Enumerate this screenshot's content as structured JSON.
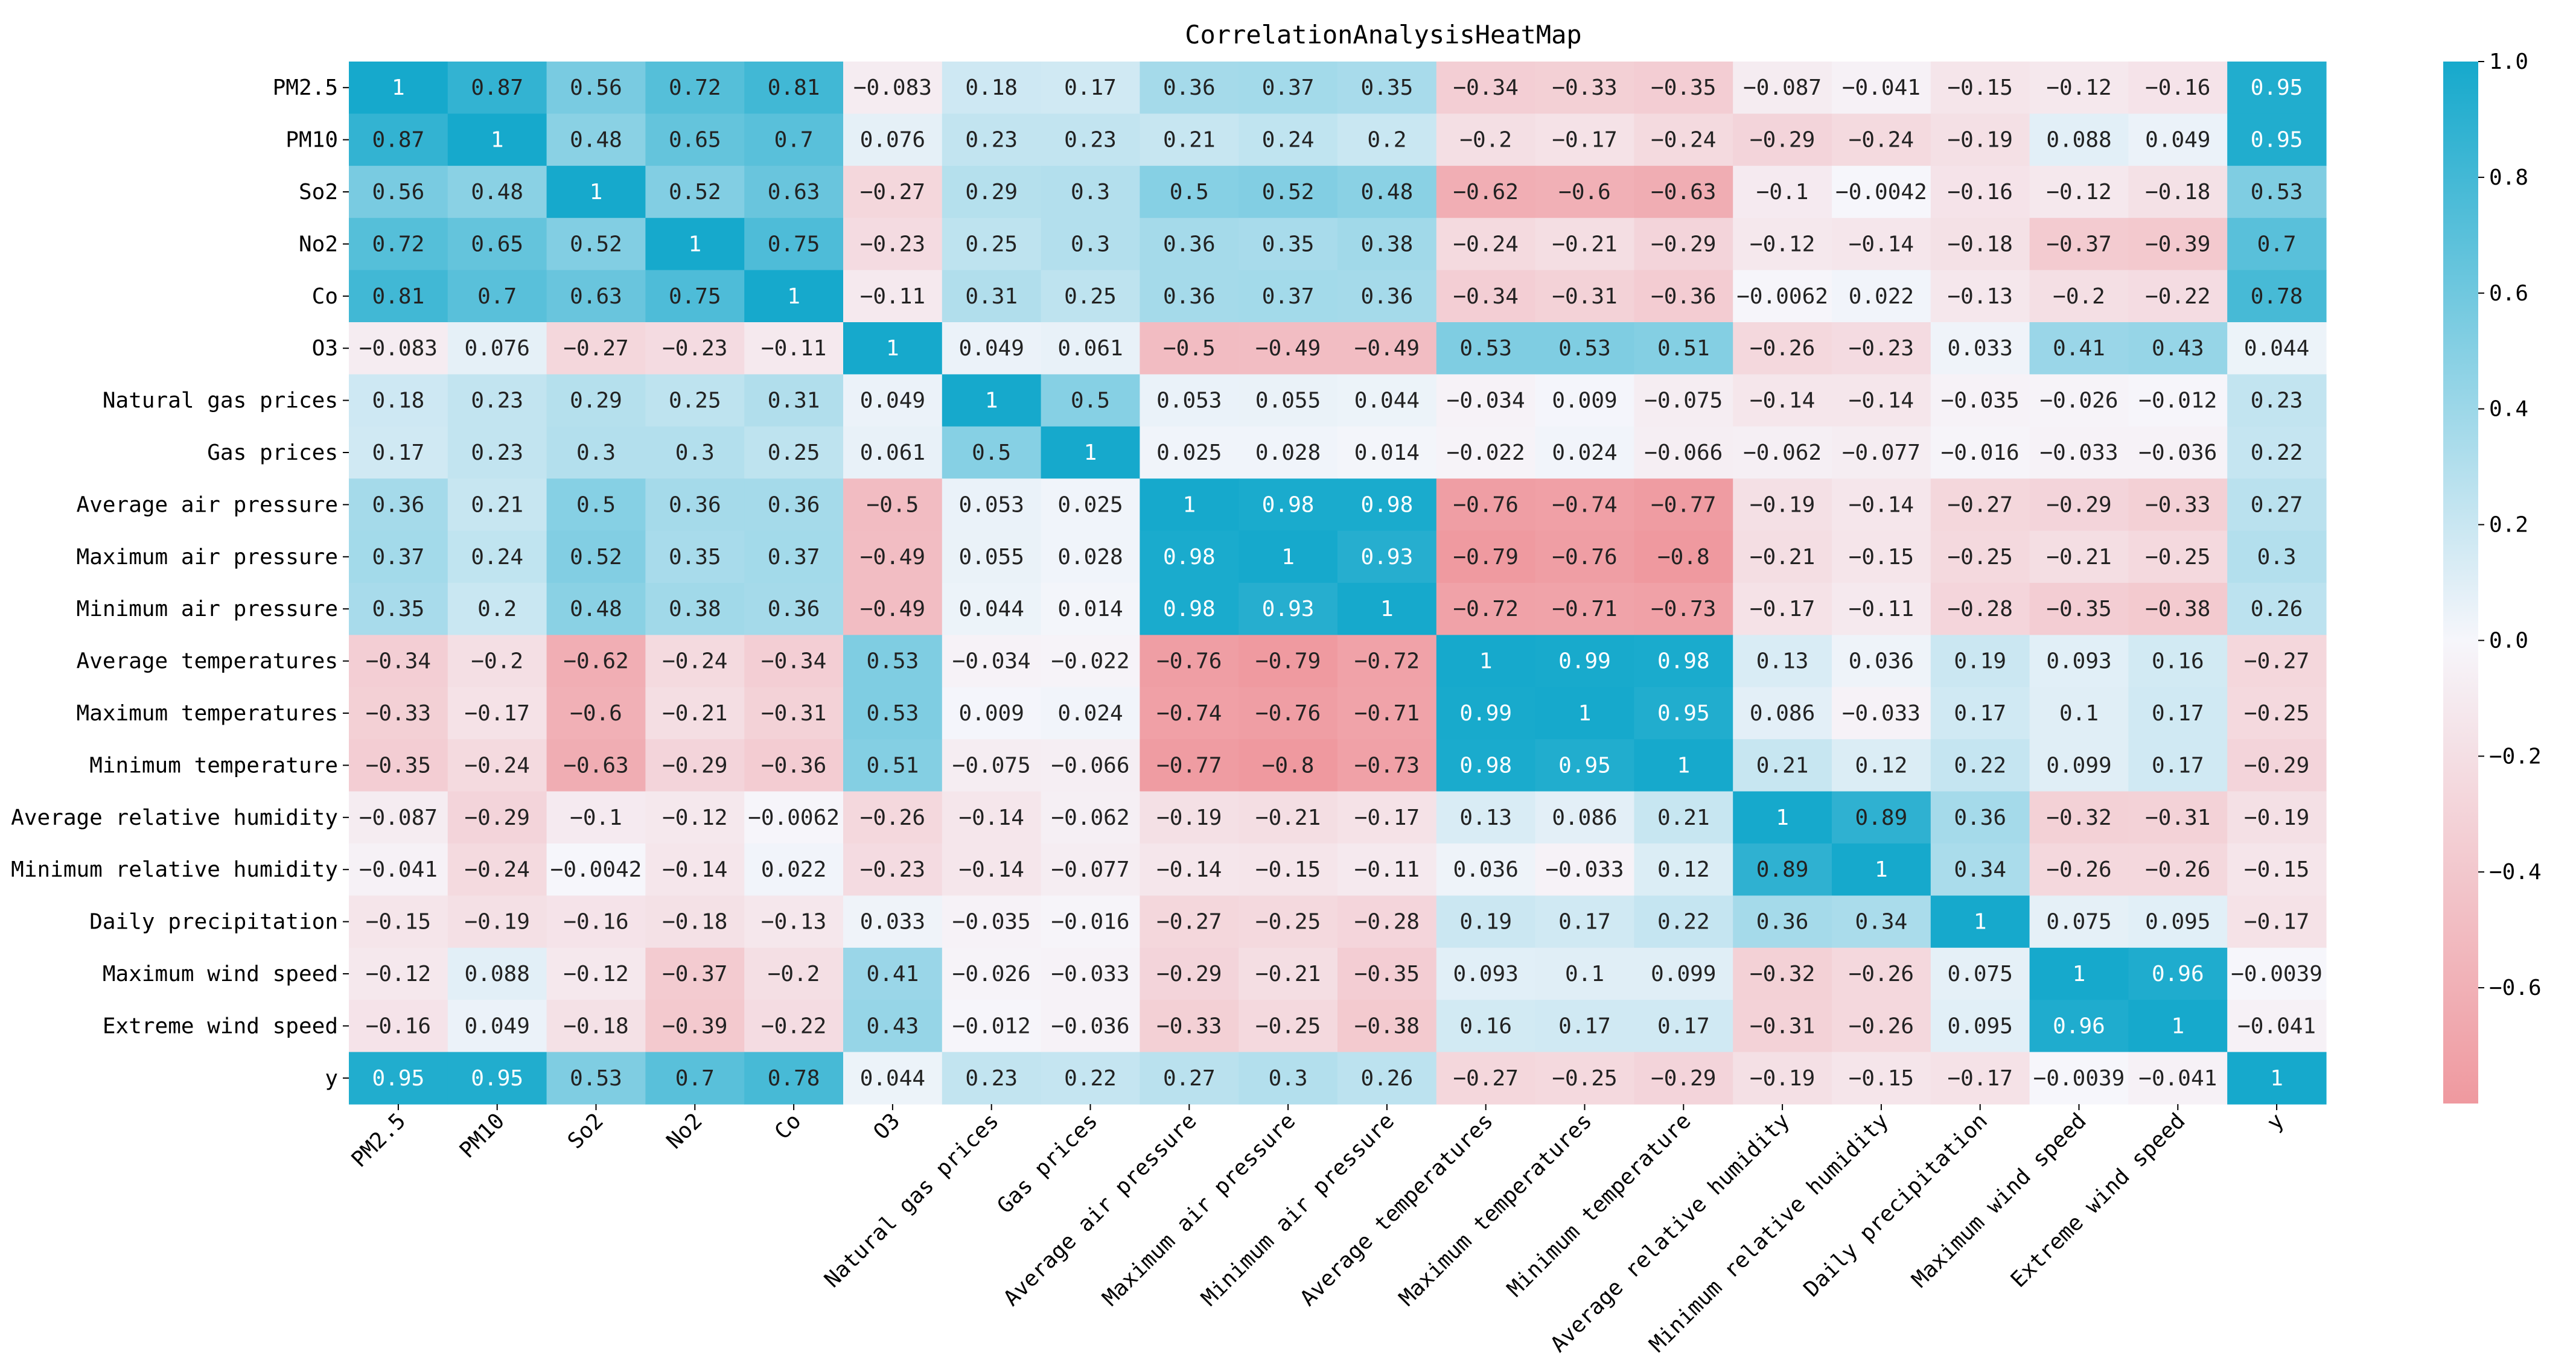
{
  "chart_data": {
    "type": "heatmap",
    "title": "CorrelationAnalysisHeatMap",
    "labels": [
      "PM2.5",
      "PM10",
      "So2",
      "No2",
      "Co",
      "O3",
      "Natural gas prices",
      "Gas prices",
      "Average air pressure",
      "Maximum air pressure",
      "Minimum air pressure",
      "Average temperatures",
      "Maximum temperatures",
      "Minimum temperature",
      "Average relative humidity",
      "Minimum relative humidity",
      "Daily precipitation",
      "Maximum wind speed",
      "Extreme wind speed",
      "y"
    ],
    "matrix": [
      [
        1,
        0.87,
        0.56,
        0.72,
        0.81,
        -0.083,
        0.18,
        0.17,
        0.36,
        0.37,
        0.35,
        -0.34,
        -0.33,
        -0.35,
        -0.087,
        -0.041,
        -0.15,
        -0.12,
        -0.16,
        0.95
      ],
      [
        0.87,
        1,
        0.48,
        0.65,
        0.7,
        0.076,
        0.23,
        0.23,
        0.21,
        0.24,
        0.2,
        -0.2,
        -0.17,
        -0.24,
        -0.29,
        -0.24,
        -0.19,
        0.088,
        0.049,
        0.95
      ],
      [
        0.56,
        0.48,
        1,
        0.52,
        0.63,
        -0.27,
        0.29,
        0.3,
        0.5,
        0.52,
        0.48,
        -0.62,
        -0.6,
        -0.63,
        -0.1,
        -0.0042,
        -0.16,
        -0.12,
        -0.18,
        0.53
      ],
      [
        0.72,
        0.65,
        0.52,
        1,
        0.75,
        -0.23,
        0.25,
        0.3,
        0.36,
        0.35,
        0.38,
        -0.24,
        -0.21,
        -0.29,
        -0.12,
        -0.14,
        -0.18,
        -0.37,
        -0.39,
        0.7
      ],
      [
        0.81,
        0.7,
        0.63,
        0.75,
        1,
        -0.11,
        0.31,
        0.25,
        0.36,
        0.37,
        0.36,
        -0.34,
        -0.31,
        -0.36,
        -0.0062,
        0.022,
        -0.13,
        -0.2,
        -0.22,
        0.78
      ],
      [
        -0.083,
        0.076,
        -0.27,
        -0.23,
        -0.11,
        1,
        0.049,
        0.061,
        -0.5,
        -0.49,
        -0.49,
        0.53,
        0.53,
        0.51,
        -0.26,
        -0.23,
        0.033,
        0.41,
        0.43,
        0.044
      ],
      [
        0.18,
        0.23,
        0.29,
        0.25,
        0.31,
        0.049,
        1,
        0.5,
        0.053,
        0.055,
        0.044,
        -0.034,
        0.009,
        -0.075,
        -0.14,
        -0.14,
        -0.035,
        -0.026,
        -0.012,
        0.23
      ],
      [
        0.17,
        0.23,
        0.3,
        0.3,
        0.25,
        0.061,
        0.5,
        1,
        0.025,
        0.028,
        0.014,
        -0.022,
        0.024,
        -0.066,
        -0.062,
        -0.077,
        -0.016,
        -0.033,
        -0.036,
        0.22
      ],
      [
        0.36,
        0.21,
        0.5,
        0.36,
        0.36,
        -0.5,
        0.053,
        0.025,
        1,
        0.98,
        0.98,
        -0.76,
        -0.74,
        -0.77,
        -0.19,
        -0.14,
        -0.27,
        -0.29,
        -0.33,
        0.27
      ],
      [
        0.37,
        0.24,
        0.52,
        0.35,
        0.37,
        -0.49,
        0.055,
        0.028,
        0.98,
        1,
        0.93,
        -0.79,
        -0.76,
        -0.8,
        -0.21,
        -0.15,
        -0.25,
        -0.21,
        -0.25,
        0.3
      ],
      [
        0.35,
        0.2,
        0.48,
        0.38,
        0.36,
        -0.49,
        0.044,
        0.014,
        0.98,
        0.93,
        1,
        -0.72,
        -0.71,
        -0.73,
        -0.17,
        -0.11,
        -0.28,
        -0.35,
        -0.38,
        0.26
      ],
      [
        -0.34,
        -0.2,
        -0.62,
        -0.24,
        -0.34,
        0.53,
        -0.034,
        -0.022,
        -0.76,
        -0.79,
        -0.72,
        1,
        0.99,
        0.98,
        0.13,
        0.036,
        0.19,
        0.093,
        0.16,
        -0.27
      ],
      [
        -0.33,
        -0.17,
        -0.6,
        -0.21,
        -0.31,
        0.53,
        0.009,
        0.024,
        -0.74,
        -0.76,
        -0.71,
        0.99,
        1,
        0.95,
        0.086,
        -0.033,
        0.17,
        0.1,
        0.17,
        -0.25
      ],
      [
        -0.35,
        -0.24,
        -0.63,
        -0.29,
        -0.36,
        0.51,
        -0.075,
        -0.066,
        -0.77,
        -0.8,
        -0.73,
        0.98,
        0.95,
        1,
        0.21,
        0.12,
        0.22,
        0.099,
        0.17,
        -0.29
      ],
      [
        -0.087,
        -0.29,
        -0.1,
        -0.12,
        -0.0062,
        -0.26,
        -0.14,
        -0.062,
        -0.19,
        -0.21,
        -0.17,
        0.13,
        0.086,
        0.21,
        1,
        0.89,
        0.36,
        -0.32,
        -0.31,
        -0.19
      ],
      [
        -0.041,
        -0.24,
        -0.0042,
        -0.14,
        0.022,
        -0.23,
        -0.14,
        -0.077,
        -0.14,
        -0.15,
        -0.11,
        0.036,
        -0.033,
        0.12,
        0.89,
        1,
        0.34,
        -0.26,
        -0.26,
        -0.15
      ],
      [
        -0.15,
        -0.19,
        -0.16,
        -0.18,
        -0.13,
        0.033,
        -0.035,
        -0.016,
        -0.27,
        -0.25,
        -0.28,
        0.19,
        0.17,
        0.22,
        0.36,
        0.34,
        1,
        0.075,
        0.095,
        -0.17
      ],
      [
        -0.12,
        0.088,
        -0.12,
        -0.37,
        -0.2,
        0.41,
        -0.026,
        -0.033,
        -0.29,
        -0.21,
        -0.35,
        0.093,
        0.1,
        0.099,
        -0.32,
        -0.26,
        0.075,
        1,
        0.96,
        -0.0039
      ],
      [
        -0.16,
        0.049,
        -0.18,
        -0.39,
        -0.22,
        0.43,
        -0.012,
        -0.036,
        -0.33,
        -0.25,
        -0.38,
        0.16,
        0.17,
        0.17,
        -0.31,
        -0.26,
        0.095,
        0.96,
        1,
        -0.041
      ],
      [
        0.95,
        0.95,
        0.53,
        0.7,
        0.78,
        0.044,
        0.23,
        0.22,
        0.27,
        0.3,
        0.26,
        -0.27,
        -0.25,
        -0.29,
        -0.19,
        -0.15,
        -0.17,
        -0.0039,
        -0.041,
        1
      ]
    ],
    "colorbar": {
      "min": -0.8,
      "max": 1.0,
      "ticks": [
        1.0,
        0.8,
        0.6,
        0.4,
        0.2,
        0.0,
        -0.2,
        -0.4,
        -0.6
      ],
      "tick_labels": [
        "1.0",
        "0.8",
        "0.6",
        "0.4",
        "0.2",
        "0.0",
        "−0.2",
        "−0.4",
        "−0.6"
      ]
    },
    "colors": {
      "positive": "#16a9cc",
      "neutral": "#f6f6fb",
      "negative": "#ef999f"
    }
  }
}
